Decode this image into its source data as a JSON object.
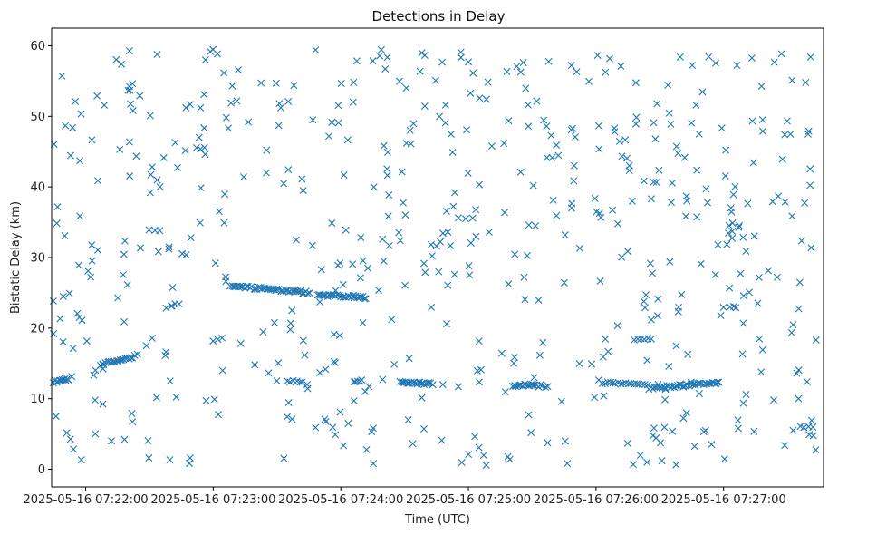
{
  "chart_data": {
    "type": "scatter",
    "title": "Detections in Delay",
    "xlabel": "Time (UTC)",
    "ylabel": "Bistatic Delay (km)",
    "x_unit": "seconds after 2025-05-16 07:22:00",
    "xlim": [
      -16,
      347
    ],
    "ylim": [
      -2.5,
      62.5
    ],
    "marker": "x",
    "color": "#1f77b4",
    "grid": false,
    "x_ticks": [
      {
        "value": 0,
        "label": "2025-05-16 07:22:00"
      },
      {
        "value": 60,
        "label": "2025-05-16 07:23:00"
      },
      {
        "value": 120,
        "label": "2025-05-16 07:24:00"
      },
      {
        "value": 180,
        "label": "2025-05-16 07:25:00"
      },
      {
        "value": 240,
        "label": "2025-05-16 07:26:00"
      },
      {
        "value": 300,
        "label": "2025-05-16 07:27:00"
      }
    ],
    "y_ticks": [
      {
        "value": 0,
        "label": "0"
      },
      {
        "value": 10,
        "label": "10"
      },
      {
        "value": 20,
        "label": "20"
      },
      {
        "value": 30,
        "label": "30"
      },
      {
        "value": 40,
        "label": "40"
      },
      {
        "value": 50,
        "label": "50"
      },
      {
        "value": 60,
        "label": "60"
      }
    ],
    "tracks": [
      {
        "t0": -15,
        "t1": -8,
        "v0": 12.4,
        "v1": 12.8,
        "n": 12
      },
      {
        "t0": 7,
        "t1": 23,
        "v0": 14.8,
        "v1": 16.0,
        "n": 20
      },
      {
        "t0": 68,
        "t1": 105,
        "v0": 26.0,
        "v1": 25.0,
        "n": 48
      },
      {
        "t0": 95,
        "t1": 102,
        "v0": 12.4,
        "v1": 12.4,
        "n": 6
      },
      {
        "t0": 109,
        "t1": 132,
        "v0": 24.7,
        "v1": 24.3,
        "n": 30
      },
      {
        "t0": 126,
        "t1": 130,
        "v0": 12.5,
        "v1": 12.5,
        "n": 5
      },
      {
        "t0": 148,
        "t1": 163,
        "v0": 12.3,
        "v1": 12.1,
        "n": 22
      },
      {
        "t0": 201,
        "t1": 211,
        "v0": 11.9,
        "v1": 11.9,
        "n": 14
      },
      {
        "t0": 211,
        "t1": 217,
        "v0": 11.8,
        "v1": 11.8,
        "n": 7
      },
      {
        "t0": 243,
        "t1": 264,
        "v0": 12.3,
        "v1": 12.0,
        "n": 18
      },
      {
        "t0": 265,
        "t1": 298,
        "v0": 11.5,
        "v1": 12.3,
        "n": 40
      },
      {
        "t0": 258,
        "t1": 266,
        "v0": 18.3,
        "v1": 18.6,
        "n": 6
      },
      {
        "t0": 300,
        "t1": 306,
        "v0": 23.0,
        "v1": 23.0,
        "n": 3
      },
      {
        "t0": 30,
        "t1": 35,
        "v0": 33.8,
        "v1": 33.8,
        "n": 3
      },
      {
        "t0": 38,
        "t1": 44,
        "v0": 22.8,
        "v1": 23.5,
        "n": 4
      },
      {
        "t0": 52,
        "t1": 56,
        "v0": 45.5,
        "v1": 45.5,
        "n": 3
      },
      {
        "t0": 60,
        "t1": 64,
        "v0": 18.3,
        "v1": 18.6,
        "n": 3
      },
      {
        "t0": 175,
        "t1": 182,
        "v0": 35.5,
        "v1": 35.5,
        "n": 3
      },
      {
        "t0": 217,
        "t1": 222,
        "v0": 44.3,
        "v1": 44.3,
        "n": 3
      },
      {
        "t0": 336,
        "t1": 342,
        "v0": 6.0,
        "v1": 6.0,
        "n": 4
      }
    ],
    "noise": {
      "t_min": -16,
      "t_max": 345,
      "v_min": 0.5,
      "v_max": 59.8,
      "count": 560,
      "seed": 20250516
    }
  }
}
